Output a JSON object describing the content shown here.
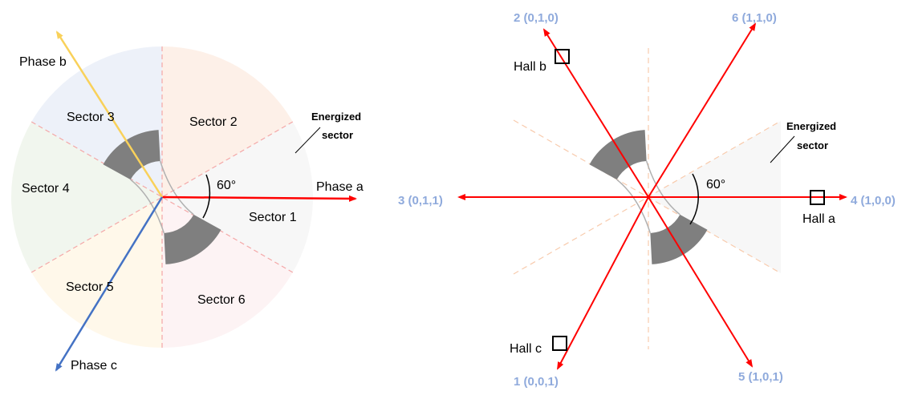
{
  "left": {
    "phases": [
      {
        "label": "Phase a",
        "color": "#ff0000"
      },
      {
        "label": "Phase b",
        "color": "#f9d15a"
      },
      {
        "label": "Phase c",
        "color": "#4472c4"
      }
    ],
    "sectors": [
      {
        "label": "Sector 1",
        "color": "#f7f7f7"
      },
      {
        "label": "Sector 2",
        "color": "#fdf0e8"
      },
      {
        "label": "Sector 3",
        "color": "#edf1f9"
      },
      {
        "label": "Sector 4",
        "color": "#f1f6ee"
      },
      {
        "label": "Sector 5",
        "color": "#fff8ea"
      },
      {
        "label": "Sector 6",
        "color": "#fdf3f4"
      }
    ],
    "angle_label": "60°",
    "energized_line1": "Energized",
    "energized_line2": "sector"
  },
  "right": {
    "states": [
      "2 (0,1,0)",
      "6 (1,1,0)",
      "3 (0,1,1)",
      "4 (1,0,0)",
      "1 (0,0,1)",
      "5 (1,0,1)"
    ],
    "halls": [
      "Hall a",
      "Hall b",
      "Hall c"
    ],
    "angle_label": "60°",
    "energized_line1": "Energized",
    "energized_line2": "sector",
    "vector_color": "#ff0000",
    "state_color": "#8faadc"
  },
  "rotor_color": "#7f7f7f"
}
